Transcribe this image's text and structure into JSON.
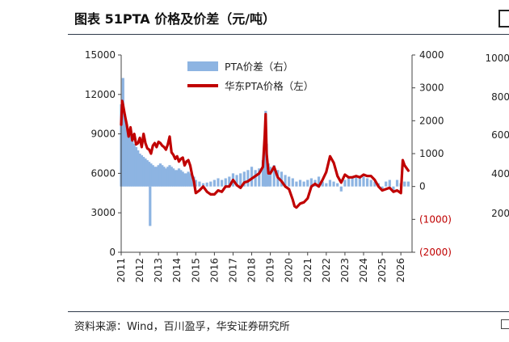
{
  "header": {
    "title": "图表 51PTA 价格及价差（元/吨）"
  },
  "footer": {
    "source": "资料来源：Wind，百川盈孚，华安证券研究所"
  },
  "chart_data": {
    "type": "line",
    "x_tick_labels": [
      "2011",
      "2012",
      "2013",
      "2014",
      "2015",
      "2016",
      "2017",
      "2018",
      "2019",
      "2020",
      "2021",
      "2022",
      "2023",
      "2024",
      "2025",
      "2026"
    ],
    "x_range": [
      2011.0,
      2026.6
    ],
    "y_left": {
      "ticks": [
        "0",
        "3000",
        "6000",
        "9000",
        "12000",
        "15000"
      ],
      "range": [
        0,
        15000
      ]
    },
    "y_right": {
      "ticks": [
        "(2000)",
        "(1000)",
        "0",
        "1000",
        "2000",
        "3000",
        "4000"
      ],
      "range": [
        -2000,
        4000
      ],
      "color": "#c00000"
    },
    "legend": {
      "placement": "top-center"
    },
    "series": [
      {
        "name": "PTA价差（右）",
        "type": "bar",
        "axis": "right",
        "color": "#8db4e2",
        "x": [
          2011.0,
          2011.1,
          2011.2,
          2011.3,
          2011.4,
          2011.5,
          2011.6,
          2011.7,
          2011.8,
          2011.9,
          2012.0,
          2012.1,
          2012.2,
          2012.3,
          2012.4,
          2012.5,
          2012.55,
          2012.6,
          2012.7,
          2012.8,
          2012.9,
          2013.0,
          2013.1,
          2013.2,
          2013.3,
          2013.4,
          2013.5,
          2013.6,
          2013.7,
          2013.8,
          2013.9,
          2014.0,
          2014.1,
          2014.2,
          2014.3,
          2014.4,
          2014.5,
          2014.6,
          2014.7,
          2014.8,
          2014.9,
          2015.0,
          2015.2,
          2015.4,
          2015.6,
          2015.8,
          2016.0,
          2016.2,
          2016.4,
          2016.6,
          2016.8,
          2017.0,
          2017.2,
          2017.4,
          2017.6,
          2017.8,
          2018.0,
          2018.2,
          2018.4,
          2018.6,
          2018.7,
          2018.75,
          2018.8,
          2018.9,
          2019.0,
          2019.2,
          2019.4,
          2019.6,
          2019.8,
          2020.0,
          2020.2,
          2020.4,
          2020.6,
          2020.8,
          2021.0,
          2021.2,
          2021.4,
          2021.6,
          2021.8,
          2022.0,
          2022.2,
          2022.4,
          2022.6,
          2022.8,
          2023.0,
          2023.2,
          2023.4,
          2023.6,
          2023.8,
          2024.0,
          2024.2,
          2024.4,
          2024.6,
          2024.8,
          2025.0,
          2025.2,
          2025.4,
          2025.6,
          2025.8,
          2026.0,
          2026.2,
          2026.4
        ],
        "values": [
          2500,
          3300,
          2200,
          1900,
          1700,
          1600,
          1500,
          1300,
          1200,
          1100,
          1000,
          950,
          900,
          850,
          800,
          750,
          -1200,
          700,
          650,
          600,
          600,
          650,
          700,
          650,
          600,
          550,
          600,
          650,
          600,
          550,
          500,
          500,
          550,
          500,
          450,
          400,
          400,
          450,
          400,
          350,
          300,
          200,
          150,
          100,
          120,
          150,
          200,
          250,
          200,
          250,
          300,
          400,
          350,
          400,
          450,
          500,
          600,
          500,
          550,
          800,
          1500,
          2300,
          1300,
          700,
          600,
          650,
          500,
          450,
          350,
          300,
          250,
          150,
          200,
          150,
          200,
          250,
          200,
          300,
          150,
          100,
          200,
          150,
          100,
          -150,
          200,
          300,
          250,
          300,
          250,
          300,
          250,
          200,
          150,
          100,
          -100,
          150,
          200,
          -150,
          200,
          100,
          150,
          150
        ]
      },
      {
        "name": "华东PTA价格（左）",
        "type": "line",
        "axis": "left",
        "color": "#c00000",
        "x": [
          2011.0,
          2011.05,
          2011.1,
          2011.2,
          2011.3,
          2011.4,
          2011.5,
          2011.6,
          2011.7,
          2011.8,
          2011.9,
          2012.0,
          2012.1,
          2012.2,
          2012.3,
          2012.4,
          2012.5,
          2012.6,
          2012.7,
          2012.8,
          2012.9,
          2013.0,
          2013.1,
          2013.2,
          2013.3,
          2013.4,
          2013.5,
          2013.6,
          2013.7,
          2013.8,
          2013.9,
          2014.0,
          2014.1,
          2014.2,
          2014.3,
          2014.4,
          2014.5,
          2014.6,
          2014.7,
          2014.8,
          2014.9,
          2015.0,
          2015.2,
          2015.4,
          2015.6,
          2015.8,
          2016.0,
          2016.2,
          2016.4,
          2016.6,
          2016.8,
          2017.0,
          2017.2,
          2017.4,
          2017.6,
          2017.8,
          2018.0,
          2018.2,
          2018.4,
          2018.6,
          2018.7,
          2018.75,
          2018.8,
          2018.9,
          2019.0,
          2019.2,
          2019.4,
          2019.6,
          2019.8,
          2020.0,
          2020.2,
          2020.3,
          2020.4,
          2020.6,
          2020.8,
          2021.0,
          2021.2,
          2021.4,
          2021.6,
          2021.8,
          2022.0,
          2022.2,
          2022.4,
          2022.5,
          2022.6,
          2022.8,
          2023.0,
          2023.2,
          2023.4,
          2023.6,
          2023.8,
          2024.0,
          2024.2,
          2024.4,
          2024.6,
          2024.8,
          2025.0,
          2025.2,
          2025.4,
          2025.6,
          2025.8,
          2026.0,
          2026.1,
          2026.2,
          2026.4
        ],
        "values": [
          9700,
          11500,
          11200,
          10400,
          9700,
          8800,
          9500,
          8500,
          9000,
          8200,
          8300,
          8700,
          8000,
          9000,
          8300,
          7900,
          7800,
          7500,
          8100,
          8300,
          8000,
          8400,
          8300,
          8100,
          8000,
          7800,
          8200,
          8800,
          7600,
          7400,
          7100,
          7300,
          6900,
          7100,
          7200,
          6600,
          6900,
          7000,
          6600,
          5900,
          5400,
          4500,
          4700,
          5000,
          4600,
          4400,
          4400,
          4700,
          4600,
          5000,
          5000,
          5500,
          5100,
          4900,
          5300,
          5400,
          5600,
          5800,
          6000,
          6500,
          8900,
          10500,
          7500,
          6000,
          6000,
          6500,
          5700,
          5400,
          5000,
          4800,
          4000,
          3500,
          3400,
          3700,
          3800,
          4100,
          5000,
          5200,
          5000,
          5500,
          6100,
          7300,
          6800,
          6300,
          5800,
          5300,
          5900,
          5700,
          5700,
          5800,
          5700,
          5900,
          5800,
          5800,
          5500,
          5000,
          4700,
          4800,
          4900,
          4600,
          4700,
          4500,
          7000,
          6600,
          6200
        ]
      }
    ]
  },
  "ghost_chart": {
    "tick_labels": [
      "1000",
      "800",
      "600",
      "400",
      "200"
    ]
  }
}
